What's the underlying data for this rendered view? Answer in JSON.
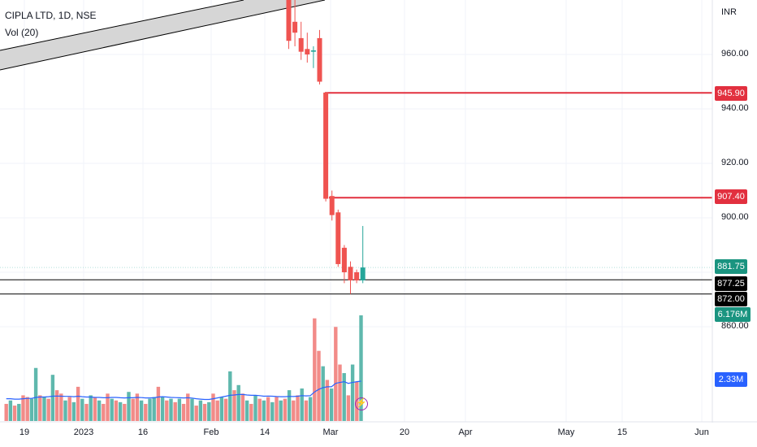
{
  "header": {
    "symbol_title": "CIPLA LTD, 1D, NSE",
    "indicator_title": "Vol (20)",
    "currency": "INR"
  },
  "price_axis": {
    "ticks": [
      "960.00",
      "940.00",
      "920.00",
      "900.00",
      "860.00"
    ]
  },
  "time_axis": {
    "ticks": [
      "19",
      "2023",
      "16",
      "Feb",
      "14",
      "Mar",
      "20",
      "Apr",
      "May",
      "15",
      "Jun"
    ]
  },
  "tags": {
    "level_upper": "945.90",
    "level_lower": "907.40",
    "last_price": "881.75",
    "crosshair_a": "877.25",
    "crosshair_b": "872.00",
    "volume_last": "6.176M",
    "volume_ma": "2.33M"
  },
  "icons": {
    "flash": "lightning-icon"
  },
  "colors": {
    "up": "#26a69a",
    "down": "#ef5350",
    "level": "#e2303f",
    "ma_line": "#2962ff",
    "channel_fill": "#d6d6d6"
  },
  "chart_data": {
    "type": "candlestick",
    "title": "CIPLA LTD, 1D, NSE",
    "y_unit": "INR",
    "y_range": [
      855,
      990
    ],
    "candles": [
      {
        "open": 985,
        "high": 990,
        "low": 962,
        "close": 965,
        "dir": "down"
      },
      {
        "open": 972,
        "high": 980,
        "low": 963,
        "close": 968,
        "dir": "down"
      },
      {
        "open": 966,
        "high": 972,
        "low": 958,
        "close": 961,
        "dir": "down"
      },
      {
        "open": 962,
        "high": 968,
        "low": 957,
        "close": 960,
        "dir": "down"
      },
      {
        "open": 961,
        "high": 963,
        "low": 955,
        "close": 961.5,
        "dir": "up"
      },
      {
        "open": 966,
        "high": 969,
        "low": 949,
        "close": 950,
        "dir": "down"
      },
      {
        "open": 946,
        "high": 946,
        "low": 906,
        "close": 907,
        "dir": "down"
      },
      {
        "open": 908,
        "high": 910,
        "low": 899,
        "close": 901,
        "dir": "down"
      },
      {
        "open": 902,
        "high": 903,
        "low": 882,
        "close": 883,
        "dir": "down"
      },
      {
        "open": 889,
        "high": 890,
        "low": 876,
        "close": 880,
        "dir": "down"
      },
      {
        "open": 882,
        "high": 884,
        "low": 872,
        "close": 877,
        "dir": "down"
      },
      {
        "open": 880,
        "high": 881,
        "low": 876,
        "close": 877,
        "dir": "down"
      },
      {
        "open": 877,
        "high": 897,
        "low": 876,
        "close": 881.75,
        "dir": "up"
      }
    ],
    "horizontal_levels": [
      945.9,
      907.4
    ],
    "last_price": 881.75,
    "crosshair_prices": [
      877.25,
      872.0
    ],
    "volume": {
      "ma_period": 20,
      "last": "6.176M",
      "ma_last": "2.33M",
      "bars_millions": [
        1.0,
        1.2,
        0.9,
        1.0,
        1.5,
        1.4,
        1.3,
        3.1,
        1.5,
        1.4,
        1.3,
        2.7,
        1.8,
        1.6,
        1.2,
        1.4,
        1.1,
        2.0,
        1.3,
        1.0,
        1.5,
        1.4,
        1.2,
        1.0,
        1.6,
        1.3,
        1.2,
        1.1,
        1.0,
        1.7,
        1.3,
        1.6,
        1.2,
        1.0,
        1.3,
        1.4,
        2.0,
        1.4,
        1.2,
        1.3,
        1.1,
        1.3,
        1.0,
        1.6,
        1.3,
        0.9,
        1.2,
        1.0,
        1.1,
        1.6,
        1.2,
        1.4,
        1.3,
        2.9,
        1.8,
        2.1,
        1.6,
        1.2,
        1.0,
        1.5,
        1.3,
        1.2,
        1.4,
        1.1,
        1.4,
        1.2,
        1.3,
        1.8,
        1.2,
        1.5,
        1.9,
        1.2,
        1.4,
        6.0,
        4.1,
        3.2,
        2.4,
        1.9,
        5.5,
        3.3,
        2.8,
        1.5,
        3.3,
        2.3,
        6.176
      ],
      "bars_up": [
        0,
        1,
        0,
        1,
        0,
        0,
        1,
        1,
        0,
        1,
        0,
        1,
        0,
        0,
        1,
        0,
        1,
        0,
        1,
        0,
        1,
        0,
        1,
        0,
        0,
        1,
        0,
        1,
        0,
        1,
        0,
        0,
        1,
        0,
        1,
        1,
        0,
        1,
        0,
        1,
        0,
        1,
        0,
        0,
        1,
        0,
        1,
        0,
        1,
        0,
        0,
        1,
        0,
        1,
        0,
        1,
        0,
        1,
        0,
        1,
        0,
        1,
        0,
        1,
        0,
        1,
        0,
        1,
        0,
        0,
        1,
        0,
        1,
        0,
        0,
        1,
        0,
        1,
        0,
        0,
        1,
        0,
        1,
        0,
        1
      ],
      "ma_millions": [
        1.3,
        1.3,
        1.28,
        1.28,
        1.3,
        1.32,
        1.32,
        1.38,
        1.4,
        1.4,
        1.42,
        1.45,
        1.46,
        1.45,
        1.44,
        1.44,
        1.42,
        1.45,
        1.42,
        1.4,
        1.4,
        1.38,
        1.38,
        1.36,
        1.36,
        1.38,
        1.38,
        1.36,
        1.35,
        1.36,
        1.36,
        1.38,
        1.37,
        1.35,
        1.35,
        1.36,
        1.4,
        1.42,
        1.4,
        1.38,
        1.37,
        1.36,
        1.35,
        1.36,
        1.34,
        1.3,
        1.28,
        1.26,
        1.26,
        1.3,
        1.35,
        1.4,
        1.45,
        1.5,
        1.52,
        1.55,
        1.55,
        1.52,
        1.5,
        1.5,
        1.48,
        1.45,
        1.46,
        1.45,
        1.43,
        1.42,
        1.42,
        1.44,
        1.43,
        1.45,
        1.48,
        1.47,
        1.48,
        1.7,
        1.85,
        1.95,
        2.0,
        2.0,
        2.2,
        2.25,
        2.3,
        2.2,
        2.25,
        2.3,
        2.33
      ]
    }
  }
}
